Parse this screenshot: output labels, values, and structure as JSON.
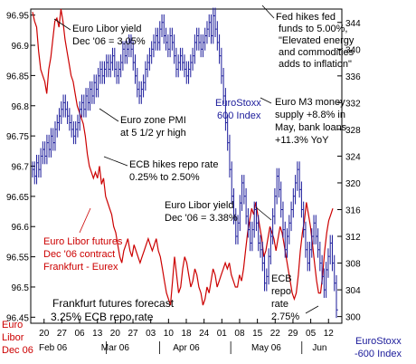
{
  "chart_data": {
    "type": "line",
    "series": [
      {
        "name": "Euro Libor futures Dec '06 contract Frankfurt - Eurex",
        "axis": "left",
        "color": "#cc0000",
        "values": [
          96.955,
          96.94,
          96.93,
          96.89,
          96.86,
          96.85,
          96.84,
          96.82,
          96.86,
          96.88,
          96.91,
          96.94,
          96.945,
          96.93,
          96.96,
          96.94,
          96.91,
          96.89,
          96.87,
          96.85,
          96.84,
          96.82,
          96.8,
          96.79,
          96.78,
          96.77,
          96.75,
          96.72,
          96.7,
          96.69,
          96.68,
          96.69,
          96.68,
          96.7,
          96.67,
          96.68,
          96.65,
          96.64,
          96.63,
          96.62,
          96.6,
          96.59,
          96.57,
          96.55,
          96.54,
          96.56,
          96.57,
          96.58,
          96.56,
          96.55,
          96.57,
          96.56,
          96.55,
          96.54,
          96.55,
          96.56,
          96.57,
          96.58,
          96.57,
          96.56,
          96.57,
          96.58,
          96.56,
          96.55,
          96.53,
          96.51,
          96.49,
          96.48,
          96.47,
          96.51,
          96.55,
          96.52,
          96.49,
          96.5,
          96.53,
          96.55,
          96.54,
          96.52,
          96.5,
          96.51,
          96.53,
          96.52,
          96.5,
          96.49,
          96.47,
          96.48,
          96.5,
          96.49,
          96.51,
          96.53,
          96.52,
          96.5,
          96.51,
          96.52,
          96.53,
          96.54,
          96.53,
          96.54,
          96.52,
          96.51,
          96.5,
          96.5,
          96.52,
          96.51,
          96.53,
          96.56,
          96.59,
          96.61,
          96.63,
          96.62,
          96.64,
          96.62,
          96.6,
          96.58,
          96.55,
          96.56,
          96.58,
          96.6,
          96.59,
          96.58,
          96.56,
          96.58,
          96.6,
          96.59,
          96.57,
          96.55,
          96.53,
          96.51,
          96.49,
          96.48,
          96.49,
          96.52,
          96.56,
          96.59,
          96.61,
          96.64,
          96.62,
          96.6,
          96.57,
          96.54,
          96.51,
          96.49,
          96.49,
          96.52,
          96.56,
          96.59,
          96.61,
          96.62,
          96.63
        ]
      },
      {
        "name": "EuroStoxx 600 Index",
        "axis": "right",
        "color": "#1a1a9a",
        "values": [
          322,
          321,
          323,
          322,
          324,
          325,
          324,
          326,
          325,
          327,
          326,
          328,
          329,
          330,
          331,
          332,
          331,
          330,
          329,
          328,
          327,
          328,
          329,
          331,
          332,
          331,
          333,
          332,
          334,
          333,
          335,
          334,
          336,
          337,
          336,
          337,
          338,
          337,
          338,
          339,
          337,
          336,
          337,
          338,
          340,
          339,
          340,
          341,
          340,
          338,
          336,
          334,
          333,
          334,
          335,
          337,
          338,
          339,
          340,
          341,
          342,
          341,
          343,
          344,
          342,
          341,
          340,
          342,
          341,
          339,
          337,
          338,
          339,
          338,
          337,
          336,
          337,
          338,
          339,
          341,
          342,
          341,
          340,
          341,
          342,
          343,
          344,
          342,
          345,
          343,
          341,
          339,
          336,
          333,
          329,
          326,
          322,
          318,
          315,
          312,
          314,
          317,
          320,
          318,
          315,
          313,
          311,
          313,
          316,
          314,
          311,
          310,
          308,
          305,
          306,
          309,
          312,
          315,
          318,
          321,
          319,
          316,
          313,
          310,
          312,
          314,
          316,
          318,
          320,
          322,
          319,
          316,
          313,
          310,
          308,
          310,
          312,
          314,
          312,
          310,
          308,
          306,
          304,
          307,
          309,
          311,
          308,
          305,
          301
        ]
      }
    ],
    "y_left": {
      "min": 96.44,
      "max": 96.96,
      "ticks": [
        "96.95",
        "96.9",
        "96.85",
        "96.8",
        "96.75",
        "96.7",
        "96.65",
        "96.6",
        "96.55",
        "96.5",
        "96.45"
      ]
    },
    "y_right": {
      "min": 299,
      "max": 346,
      "ticks": [
        "344",
        "340",
        "336",
        "332",
        "328",
        "324",
        "320",
        "316",
        "312",
        "308",
        "304",
        "300"
      ]
    },
    "x_tick_labels": [
      "20",
      "27",
      "06",
      "13",
      "20",
      "27",
      "03",
      "10",
      "18",
      "24",
      "01",
      "08",
      "15",
      "22",
      "29",
      "05",
      "12"
    ],
    "x_month_labels": [
      "Feb 06",
      "Mar 06",
      "Apr 06",
      "May 06",
      "Jun"
    ],
    "left_axis_label": [
      "Euro",
      "Libor",
      "Dec 06"
    ],
    "right_axis_label": [
      "EuroStoxx",
      "-600 Index"
    ],
    "grid": false,
    "annotations": {
      "libor_305": [
        "Euro Libor yield",
        "Dec '06 = 3.05%"
      ],
      "fed": [
        "Fed hikes fed",
        "funds to 5.00%,",
        "\"Elevated energy",
        "and commodities",
        "adds to inflation\""
      ],
      "pmi": [
        "Euro zone PMI",
        "at 5 1/2 yr high"
      ],
      "stoxx": [
        "EuroStoxx",
        "600 Index"
      ],
      "m3": [
        "Euro M3 money",
        "supply +8.8% in",
        "May, bank loans",
        "+11.3% YoY"
      ],
      "ecb_hike": [
        "ECB hikes repo rate",
        "0.25% to 2.50%"
      ],
      "libor_338": [
        "Euro Libor yield",
        "Dec '06 = 3.38%"
      ],
      "futures": [
        "Euro Libor futures",
        "Dec '06 contract",
        "Frankfurt - Eurex"
      ],
      "ecb_repo": [
        "ECB",
        "repo",
        "rate",
        "2.75%"
      ],
      "frankfurt": [
        "Frankfurt futures forecast",
        "3.25% ECB repo rate"
      ]
    }
  }
}
